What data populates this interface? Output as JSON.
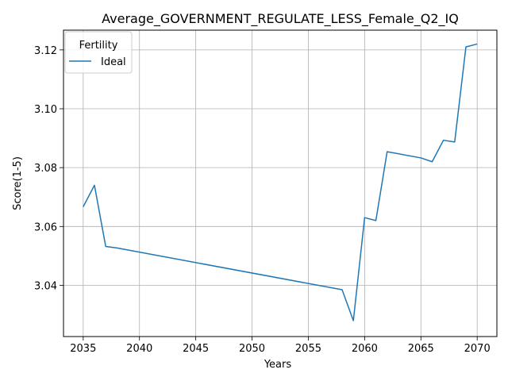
{
  "chart_data": {
    "type": "line",
    "title": "Average_GOVERNMENT_REGULATE_LESS_Female_Q2_IQ",
    "xlabel": "Years",
    "ylabel": "Score(1-5)",
    "xlim": [
      2033.25,
      2071.75
    ],
    "ylim": [
      3.0226,
      3.1267
    ],
    "x_ticks": [
      2035,
      2040,
      2045,
      2050,
      2055,
      2060,
      2065,
      2070
    ],
    "y_ticks": [
      3.04,
      3.06,
      3.08,
      3.1,
      3.12
    ],
    "x_tick_labels": [
      "2035",
      "2040",
      "2045",
      "2050",
      "2055",
      "2060",
      "2065",
      "2070"
    ],
    "y_tick_labels": [
      "3.04",
      "3.06",
      "3.08",
      "3.10",
      "3.12"
    ],
    "grid": true,
    "legend": {
      "title": "Fertility",
      "placement": "top-left"
    },
    "series": [
      {
        "name": "Ideal",
        "color": "#1f77b4",
        "x": [
          2035,
          2036,
          2037,
          2038,
          2058,
          2059,
          2060,
          2061,
          2062,
          2065,
          2066,
          2067,
          2068,
          2069,
          2070
        ],
        "y": [
          3.0667,
          3.074,
          3.0532,
          3.0527,
          3.0385,
          3.028,
          3.063,
          3.062,
          3.0854,
          3.0833,
          3.082,
          3.0893,
          3.0887,
          3.121,
          3.122
        ]
      }
    ]
  }
}
